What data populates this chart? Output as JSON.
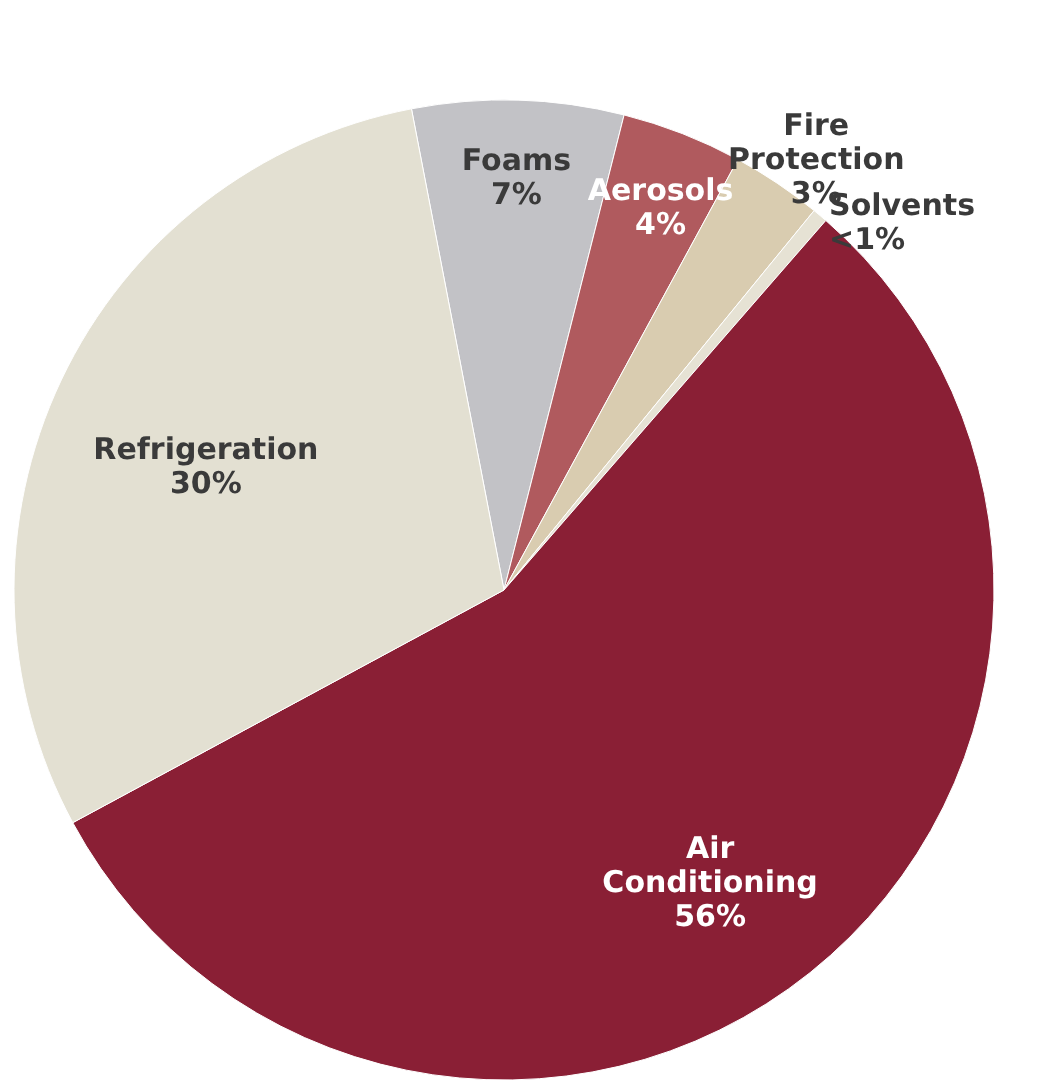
{
  "chart_data": {
    "type": "pie",
    "categories": [
      "Foams",
      "Aerosols",
      "Fire Protection",
      "Solvents",
      "Air Conditioning",
      "Refrigeration"
    ],
    "values": [
      7,
      4,
      3,
      0.5,
      56,
      30
    ],
    "value_labels": [
      "7%",
      "4%",
      "3%",
      "<1%",
      "56%",
      "30%"
    ],
    "colors": [
      "#c2c2c6",
      "#b05a5e",
      "#d9ccb0",
      "#e6e2d4",
      "#8a1f35",
      "#e3e0d2"
    ]
  }
}
